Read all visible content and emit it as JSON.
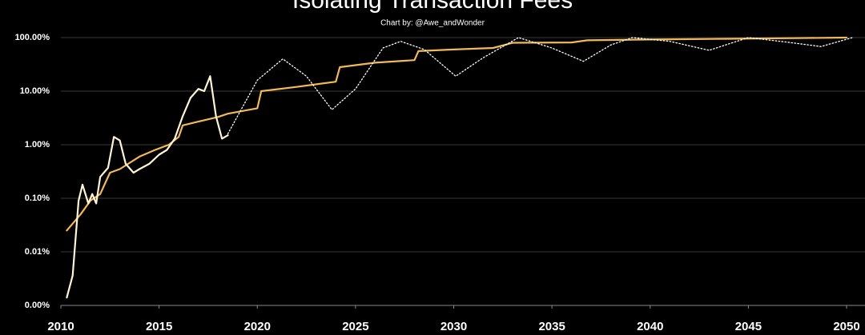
{
  "chart_data": {
    "type": "line",
    "title": "Isolating Transaction Fees",
    "subtitle": "Chart by: @Awe_andWonder",
    "xlim": [
      2010,
      2050
    ],
    "xticks": [
      2010,
      2015,
      2020,
      2025,
      2030,
      2035,
      2040,
      2045,
      2050
    ],
    "ylim": [
      0.001,
      100
    ],
    "yticks": [
      {
        "value": 0.001,
        "label": "0.00%"
      },
      {
        "value": 0.01,
        "label": "0.01%"
      },
      {
        "value": 0.1,
        "label": "0.10%"
      },
      {
        "value": 1,
        "label": "1.00%"
      },
      {
        "value": 10,
        "label": "10.00%"
      },
      {
        "value": 100,
        "label": "100.00%"
      }
    ],
    "log_scale": true,
    "grid": true,
    "series": [
      {
        "color": "#f2b95c",
        "line_style": "solid",
        "x": [
          2010.3,
          2011,
          2011.5,
          2012,
          2012.5,
          2013,
          2014,
          2014.8,
          2015.5,
          2016,
          2016.2,
          2017,
          2018,
          2018.5,
          2020,
          2020.2,
          2022,
          2024,
          2024.2,
          2026,
          2028,
          2028.2,
          2030,
          2032,
          2033,
          2036,
          2036.8,
          2040,
          2044,
          2050
        ],
        "values": [
          0.025,
          0.05,
          0.09,
          0.12,
          0.3,
          0.35,
          0.6,
          0.8,
          1.0,
          1.4,
          2.3,
          2.7,
          3.3,
          3.8,
          4.8,
          10,
          12,
          15,
          28,
          34,
          38,
          56,
          60,
          64,
          80,
          81,
          89,
          92,
          95,
          100
        ]
      },
      {
        "color": "#fff5d6",
        "line_style": "solid",
        "x": [
          2010.3,
          2010.6,
          2010.9,
          2011.1,
          2011.4,
          2011.6,
          2011.8,
          2012,
          2012.4,
          2012.7,
          2013,
          2013.3,
          2013.7,
          2014,
          2014.5,
          2015,
          2015.4,
          2015.8,
          2016.2,
          2016.6,
          2017,
          2017.3,
          2017.6,
          2017.9,
          2018.2,
          2018.5
        ],
        "values": [
          0.0014,
          0.0036,
          0.09,
          0.18,
          0.08,
          0.12,
          0.08,
          0.25,
          0.37,
          1.4,
          1.2,
          0.44,
          0.3,
          0.35,
          0.44,
          0.65,
          0.8,
          1.3,
          3.4,
          7.5,
          11,
          10,
          19,
          3.4,
          1.3,
          1.5
        ]
      },
      {
        "color": "#ffffff",
        "line_style": "dotted",
        "x": [
          2018.5,
          2020,
          2021.3,
          2022.5,
          2023.8,
          2025,
          2026.4,
          2027.3,
          2028.5,
          2030.1,
          2031.5,
          2033.3,
          2035,
          2036.6,
          2038,
          2039.1,
          2041,
          2043,
          2045,
          2047,
          2048.7,
          2050.3
        ],
        "values": [
          1.6,
          16,
          40,
          19,
          4.5,
          11,
          64,
          85,
          60,
          19,
          42,
          100,
          64,
          36,
          73,
          100,
          85,
          58,
          100,
          82,
          68,
          100
        ]
      }
    ]
  }
}
